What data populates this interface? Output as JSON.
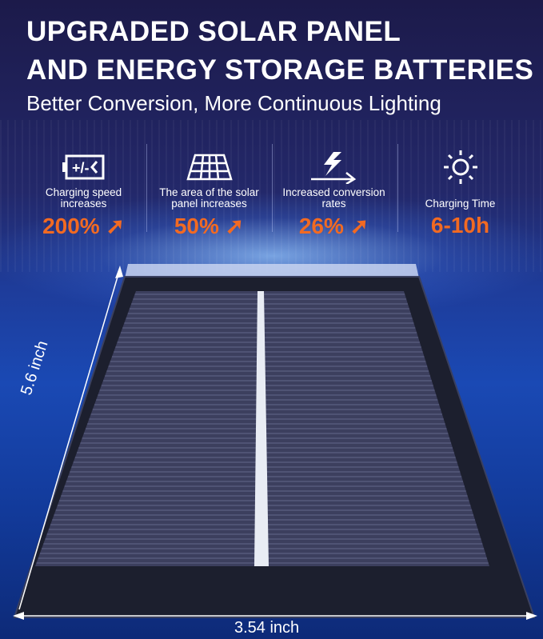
{
  "headline": {
    "line1": "UPGRADED SOLAR PANEL",
    "line2": "AND ENERGY STORAGE BATTERIES"
  },
  "subtitle": "Better Conversion,   More Continuous Lighting",
  "features": [
    {
      "icon": "battery-charging-icon",
      "label": "Charging speed increases",
      "value": "200%",
      "arrow": true
    },
    {
      "icon": "solar-panel-icon",
      "label": "The area of the solar panel increases",
      "value": "50%",
      "arrow": true
    },
    {
      "icon": "lightning-arrow-icon",
      "label": "Increased conversion rates",
      "value": "26%",
      "arrow": true
    },
    {
      "icon": "sun-icon",
      "label": "Charging Time",
      "value": "6-10h",
      "arrow": false
    }
  ],
  "dimensions": {
    "height": "5.6 inch",
    "width": "3.54 inch"
  },
  "colors": {
    "accent": "#f26a22",
    "background": "#1e3c9a",
    "panel_frame": "#1c1f2e"
  }
}
